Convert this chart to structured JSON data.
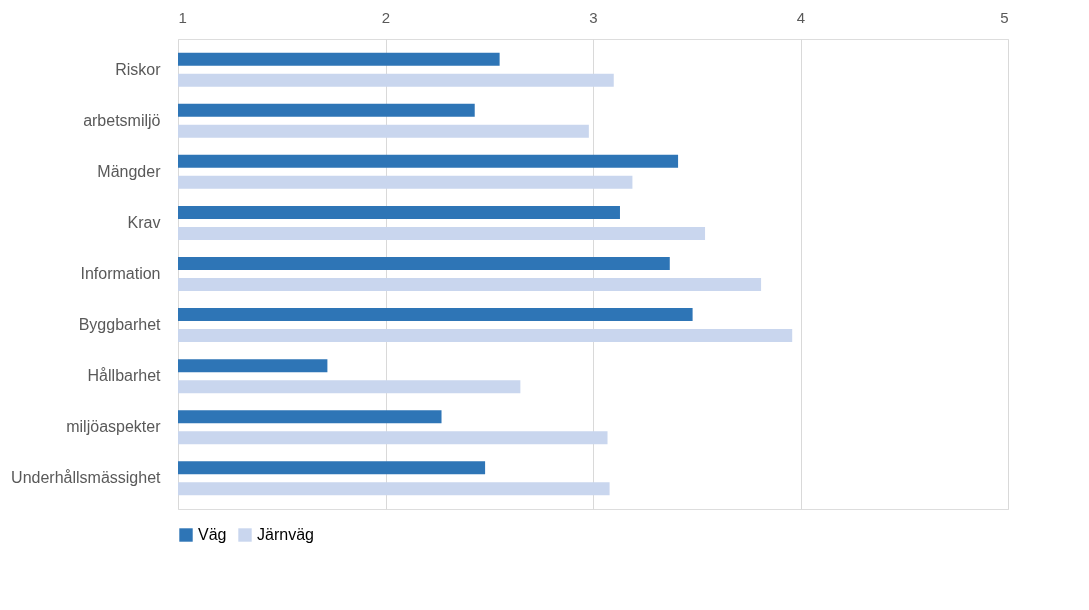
{
  "chart_data": {
    "type": "bar",
    "orientation": "horizontal",
    "categories": [
      "Riskor",
      "arbetsmiljö",
      "Mängder",
      "Krav",
      "Information",
      "Byggbarhet",
      "Hållbarhet",
      "miljöaspekter",
      "Underhållsmässighet"
    ],
    "series": [
      {
        "name": "Väg",
        "color": "#2e75b6",
        "values": [
          2.55,
          2.43,
          3.41,
          3.13,
          3.37,
          3.48,
          1.72,
          2.27,
          2.48
        ]
      },
      {
        "name": "Järnväg",
        "color": "#c9d6ee",
        "values": [
          3.1,
          2.98,
          3.19,
          3.54,
          3.81,
          3.96,
          2.65,
          3.07,
          3.08
        ]
      }
    ],
    "xlim": [
      1,
      5
    ],
    "xticks": [
      1,
      2,
      3,
      4,
      5
    ],
    "grid": "x",
    "legend": "bottom"
  }
}
